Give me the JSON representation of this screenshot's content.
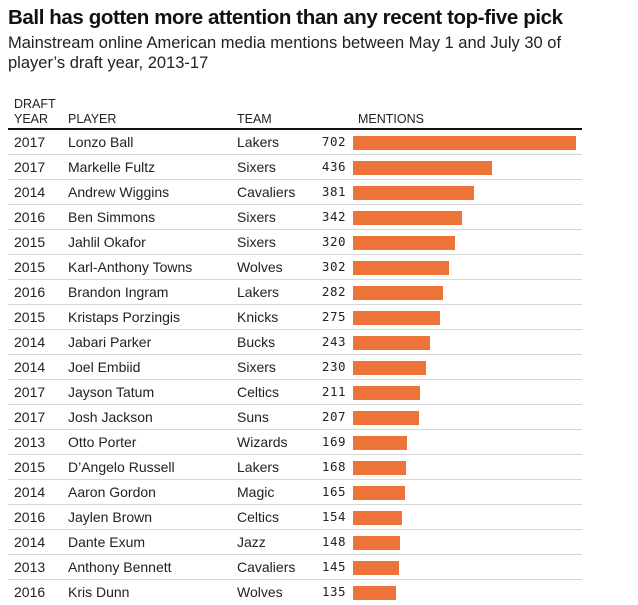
{
  "header": {
    "title": "Ball has gotten more attention than any recent top-five pick",
    "subtitle": "Mainstream online American media mentions between May 1 and July 30 of player’s draft year, 2013-17"
  },
  "columns": {
    "year_line1": "DRAFT",
    "year_line2": "YEAR",
    "player": "PLAYER",
    "team": "TEAM",
    "mentions": "MENTIONS"
  },
  "colors": {
    "bar": "#ee7339",
    "rule": "#111111",
    "divider": "#d6d6d6"
  },
  "chart_data": {
    "type": "table",
    "title": "Ball has gotten more attention than any recent top-five pick",
    "subtitle": "Mainstream online American media mentions between May 1 and July 30 of player’s draft year, 2013-17",
    "columns": [
      "DRAFT YEAR",
      "PLAYER",
      "TEAM",
      "MENTIONS"
    ],
    "bar_column": "MENTIONS",
    "xlim": [
      0,
      702
    ],
    "rows": [
      {
        "year": "2017",
        "player": "Lonzo Ball",
        "team": "Lakers",
        "mentions": 702
      },
      {
        "year": "2017",
        "player": "Markelle Fultz",
        "team": "Sixers",
        "mentions": 436
      },
      {
        "year": "2014",
        "player": "Andrew Wiggins",
        "team": "Cavaliers",
        "mentions": 381
      },
      {
        "year": "2016",
        "player": "Ben Simmons",
        "team": "Sixers",
        "mentions": 342
      },
      {
        "year": "2015",
        "player": "Jahlil Okafor",
        "team": "Sixers",
        "mentions": 320
      },
      {
        "year": "2015",
        "player": "Karl-Anthony Towns",
        "team": "Wolves",
        "mentions": 302
      },
      {
        "year": "2016",
        "player": "Brandon Ingram",
        "team": "Lakers",
        "mentions": 282
      },
      {
        "year": "2015",
        "player": "Kristaps Porzingis",
        "team": "Knicks",
        "mentions": 275
      },
      {
        "year": "2014",
        "player": "Jabari Parker",
        "team": "Bucks",
        "mentions": 243
      },
      {
        "year": "2014",
        "player": "Joel Embiid",
        "team": "Sixers",
        "mentions": 230
      },
      {
        "year": "2017",
        "player": "Jayson Tatum",
        "team": "Celtics",
        "mentions": 211
      },
      {
        "year": "2017",
        "player": "Josh Jackson",
        "team": "Suns",
        "mentions": 207
      },
      {
        "year": "2013",
        "player": "Otto Porter",
        "team": "Wizards",
        "mentions": 169
      },
      {
        "year": "2015",
        "player": "D’Angelo Russell",
        "team": "Lakers",
        "mentions": 168
      },
      {
        "year": "2014",
        "player": "Aaron Gordon",
        "team": "Magic",
        "mentions": 165
      },
      {
        "year": "2016",
        "player": "Jaylen Brown",
        "team": "Celtics",
        "mentions": 154
      },
      {
        "year": "2014",
        "player": "Dante Exum",
        "team": "Jazz",
        "mentions": 148
      },
      {
        "year": "2013",
        "player": "Anthony Bennett",
        "team": "Cavaliers",
        "mentions": 145
      },
      {
        "year": "2016",
        "player": "Kris Dunn",
        "team": "Wolves",
        "mentions": 135
      }
    ]
  }
}
